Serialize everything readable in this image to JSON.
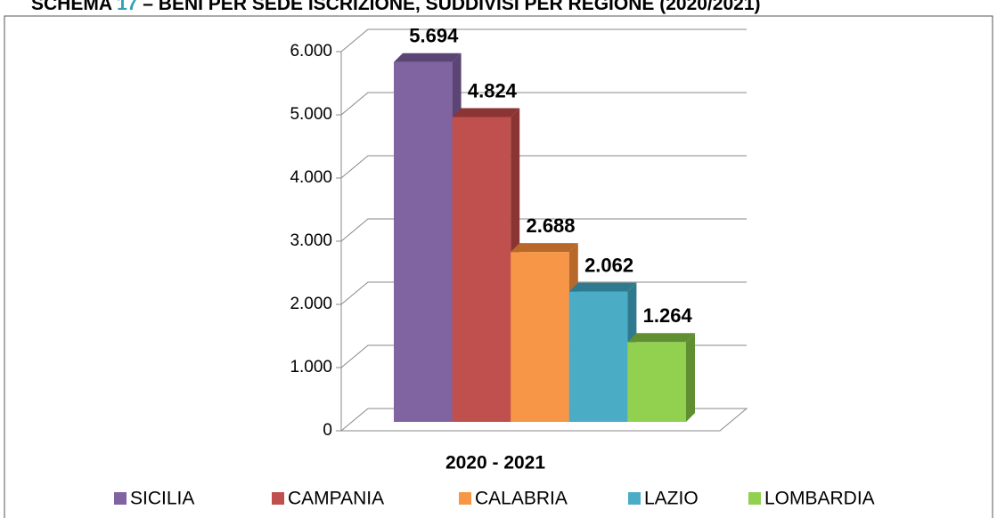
{
  "chart_data": {
    "type": "bar3d",
    "title_prefix": "SCHEMA",
    "title_number": "17",
    "title": "– BENI PER SEDE ISCRIZIONE, SUDDIVISI PER REGIONE (2020/2021)",
    "categories": [
      "2020 - 2021"
    ],
    "series": [
      {
        "name": "SICILIA",
        "color": "#8064a2",
        "side": "#5a4574",
        "values": [
          5694
        ],
        "value_labels": [
          "5.694"
        ]
      },
      {
        "name": "CAMPANIA",
        "color": "#c0504d",
        "side": "#8a3533",
        "values": [
          4824
        ],
        "value_labels": [
          "4.824"
        ]
      },
      {
        "name": "CALABRIA",
        "color": "#f79646",
        "side": "#b8692a",
        "values": [
          2688
        ],
        "value_labels": [
          "2.688"
        ]
      },
      {
        "name": "LAZIO",
        "color": "#4bacc6",
        "side": "#2f7a8e",
        "values": [
          2062
        ],
        "value_labels": [
          "2.062"
        ]
      },
      {
        "name": "LOMBARDIA",
        "color": "#92d050",
        "side": "#5f8f30",
        "values": [
          1264
        ],
        "value_labels": [
          "1.264"
        ]
      }
    ],
    "ylim": [
      0,
      6000
    ],
    "yticks": [
      0,
      {
        "value": 1000,
        "label": "1.000"
      },
      {
        "value": 2000,
        "label": "2.000"
      },
      {
        "value": 3000,
        "label": "3.000"
      },
      {
        "value": 4000,
        "label": "4.000"
      },
      {
        "value": 5000,
        "label": "5.000"
      },
      {
        "value": 6000,
        "label": "6.000"
      }
    ],
    "grid": true
  }
}
